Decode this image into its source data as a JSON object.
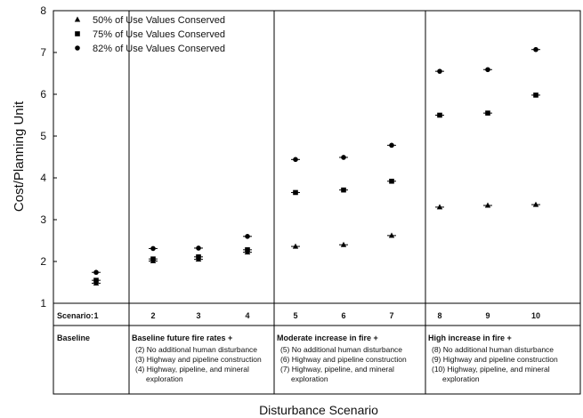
{
  "chart_data": {
    "type": "scatter",
    "title": "",
    "ylabel": "Cost/Planning Unit",
    "xlabel": "Disturbance Scenario",
    "ylim": [
      1,
      8
    ],
    "yticks": [
      "1",
      "2",
      "3",
      "4",
      "5",
      "6",
      "7",
      "8"
    ],
    "legend_position": "top-left",
    "grid": false,
    "scenario_label": "Scenario:",
    "x": [
      1,
      2,
      3,
      4,
      5,
      6,
      7,
      8,
      9,
      10
    ],
    "x_labels": [
      "1",
      "2",
      "3",
      "4",
      "5",
      "6",
      "7",
      "8",
      "9",
      "10"
    ],
    "series": [
      {
        "name": "50% of Use Values Conserved",
        "marker": "triangle",
        "values": [
          1.48,
          2.01,
          2.05,
          2.22,
          2.36,
          2.4,
          2.62,
          3.3,
          3.34,
          3.36
        ]
      },
      {
        "name": "75% of Use Values Conserved",
        "marker": "square",
        "values": [
          1.55,
          2.06,
          2.11,
          2.28,
          3.65,
          3.71,
          3.92,
          5.5,
          5.55,
          5.98
        ]
      },
      {
        "name": "82% of Use Values Conserved",
        "marker": "circle",
        "values": [
          1.74,
          2.31,
          2.32,
          2.6,
          4.44,
          4.49,
          4.78,
          6.55,
          6.59,
          7.07
        ]
      }
    ],
    "groups": [
      {
        "title": "Baseline",
        "items": []
      },
      {
        "title": "Baseline future fire rates +",
        "items": [
          "(2) No additional human disturbance",
          "(3) Highway and pipeline construction",
          "(4) Highway, pipeline, and mineral",
          "exploration"
        ]
      },
      {
        "title": "Moderate increase in fire +",
        "items": [
          "(5) No additional human disturbance",
          "(6) Highway and pipeline construction",
          "(7) Highway, pipeline, and mineral",
          "exploration"
        ]
      },
      {
        "title": "High increase in fire +",
        "items": [
          "(8) No additional human disturbance",
          "(9) Highway and pipeline construction",
          "(10) Highway, pipeline, and mineral",
          "exploration"
        ]
      }
    ]
  }
}
